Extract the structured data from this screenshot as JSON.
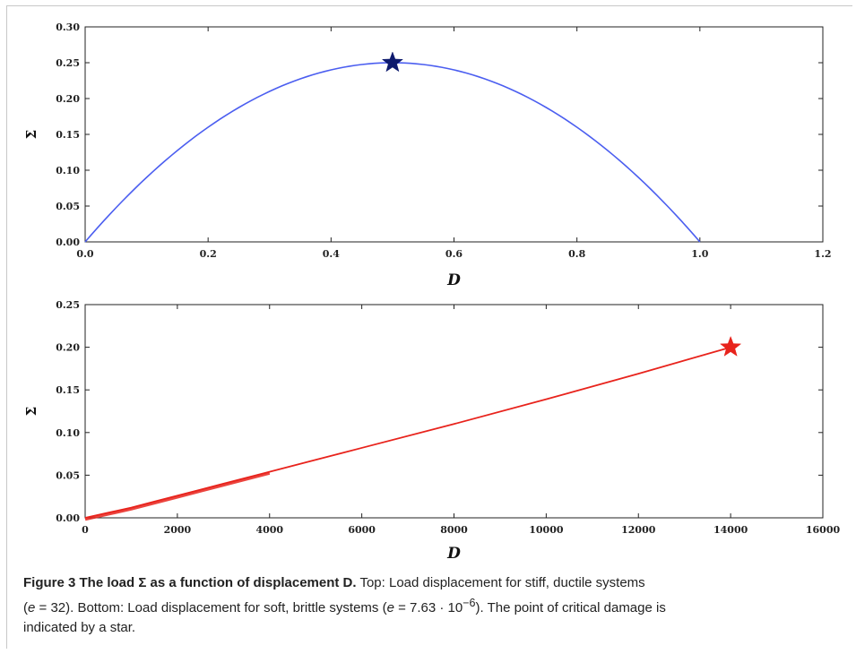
{
  "chart_data": [
    {
      "type": "line",
      "xlabel": "D",
      "ylabel": "Σ",
      "xlim": [
        0.0,
        1.2
      ],
      "ylim": [
        0.0,
        0.3
      ],
      "xticks": [
        "0.0",
        "0.2",
        "0.4",
        "0.6",
        "0.8",
        "1.0",
        "1.2"
      ],
      "yticks": [
        "0.00",
        "0.05",
        "0.10",
        "0.15",
        "0.20",
        "0.25",
        "0.30"
      ],
      "series": [
        {
          "color": "#4b5ef0",
          "x": [
            0.0,
            0.05,
            0.1,
            0.15,
            0.2,
            0.25,
            0.3,
            0.35,
            0.4,
            0.45,
            0.5,
            0.55,
            0.6,
            0.65,
            0.7,
            0.75,
            0.8,
            0.85,
            0.9,
            0.95,
            1.0
          ],
          "y": [
            0.0,
            0.0475,
            0.09,
            0.1275,
            0.16,
            0.1875,
            0.21,
            0.2275,
            0.24,
            0.2475,
            0.25,
            0.2475,
            0.24,
            0.2275,
            0.21,
            0.1875,
            0.16,
            0.1275,
            0.09,
            0.0475,
            0.0
          ]
        }
      ],
      "marker": {
        "x": 0.5,
        "y": 0.25,
        "shape": "star",
        "color": "#0d1a6e"
      },
      "grid": false
    },
    {
      "type": "line",
      "xlabel": "D",
      "ylabel": "Σ",
      "xlim": [
        0,
        16000
      ],
      "ylim": [
        0.0,
        0.25
      ],
      "xticks": [
        "0",
        "2000",
        "4000",
        "6000",
        "8000",
        "10000",
        "12000",
        "14000",
        "16000"
      ],
      "yticks": [
        "0.00",
        "0.05",
        "0.10",
        "0.15",
        "0.20",
        "0.25"
      ],
      "series": [
        {
          "color": "#e8231c",
          "x": [
            0,
            500,
            1000,
            1500,
            2000,
            2500,
            3000,
            4000,
            5000,
            6000,
            8000,
            10000,
            12000,
            14000
          ],
          "y": [
            0.0,
            0.006,
            0.012,
            0.019,
            0.026,
            0.033,
            0.04,
            0.054,
            0.068,
            0.082,
            0.11,
            0.139,
            0.169,
            0.2
          ]
        }
      ],
      "marker": {
        "x": 14000,
        "y": 0.2,
        "shape": "star",
        "color": "#e8231c"
      },
      "grid": false
    }
  ],
  "caption": {
    "bold": "Figure 3 The load Σ as a function of displacement D.",
    "line1": " Top: Load displacement for stiff, ductile systems",
    "line2a": "(",
    "e_var": "e",
    "line2b": " = 32). Bottom: Load displacement for soft, brittle systems (",
    "line2c": " = 7.63 · 10",
    "exp": "−6",
    "line2d": "). The point of critical damage is",
    "line3": "indicated by a star."
  }
}
